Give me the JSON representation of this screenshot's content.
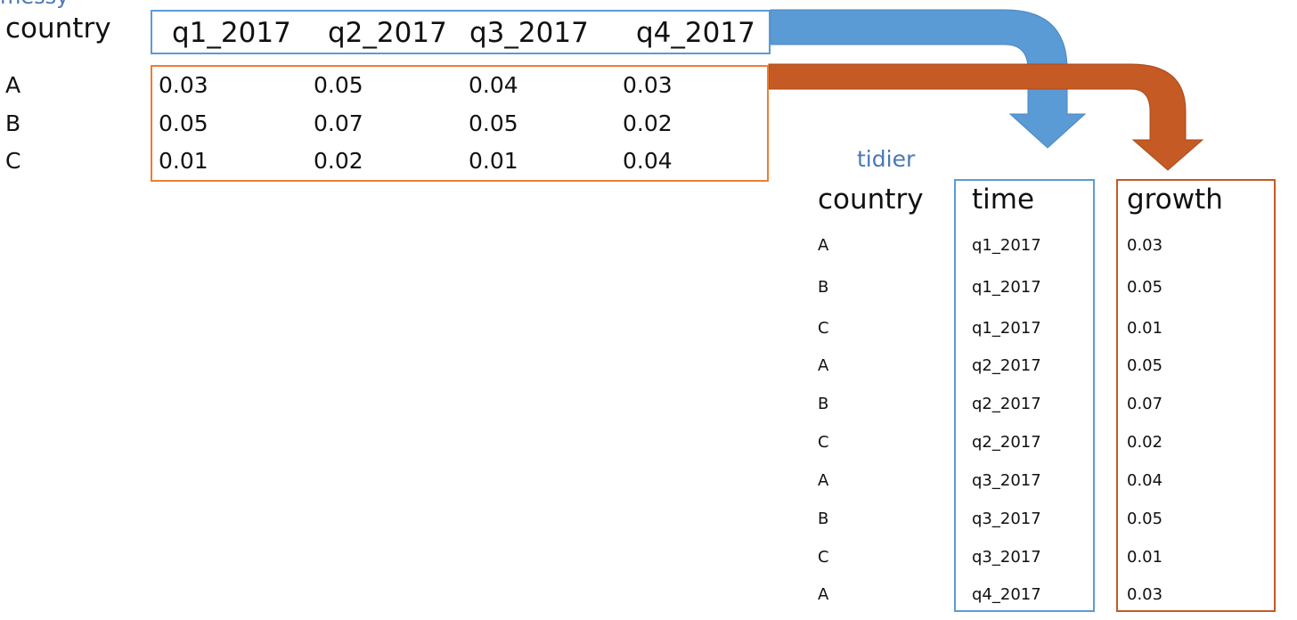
{
  "messy": {
    "title": "messy",
    "header": {
      "country": "country",
      "columns": [
        "q1_2017",
        "q2_2017",
        "q3_2017",
        "q4_2017"
      ]
    },
    "rows": [
      {
        "country": "A",
        "values": [
          "0.03",
          "0.05",
          "0.04",
          "0.03"
        ]
      },
      {
        "country": "B",
        "values": [
          "0.05",
          "0.07",
          "0.05",
          "0.02"
        ]
      },
      {
        "country": "C",
        "values": [
          "0.01",
          "0.02",
          "0.01",
          "0.04"
        ]
      }
    ]
  },
  "tidy": {
    "title": "tidier",
    "header": {
      "country": "country",
      "time": "time",
      "growth": "growth"
    },
    "rows": [
      {
        "country": "A",
        "time": "q1_2017",
        "growth": "0.03"
      },
      {
        "country": "B",
        "time": "q1_2017",
        "growth": "0.05"
      },
      {
        "country": "C",
        "time": "q1_2017",
        "growth": "0.01"
      },
      {
        "country": "A",
        "time": "q2_2017",
        "growth": "0.05"
      },
      {
        "country": "B",
        "time": "q2_2017",
        "growth": "0.07"
      },
      {
        "country": "C",
        "time": "q2_2017",
        "growth": "0.02"
      },
      {
        "country": "A",
        "time": "q3_2017",
        "growth": "0.04"
      },
      {
        "country": "B",
        "time": "q3_2017",
        "growth": "0.05"
      },
      {
        "country": "C",
        "time": "q3_2017",
        "growth": "0.01"
      },
      {
        "country": "A",
        "time": "q4_2017",
        "growth": "0.03"
      }
    ]
  },
  "colors": {
    "header_blue": "#5b9bd5",
    "value_orange": "#ed7d31",
    "growth_orange": "#c55a24",
    "title_blue": "#4a78b4"
  }
}
